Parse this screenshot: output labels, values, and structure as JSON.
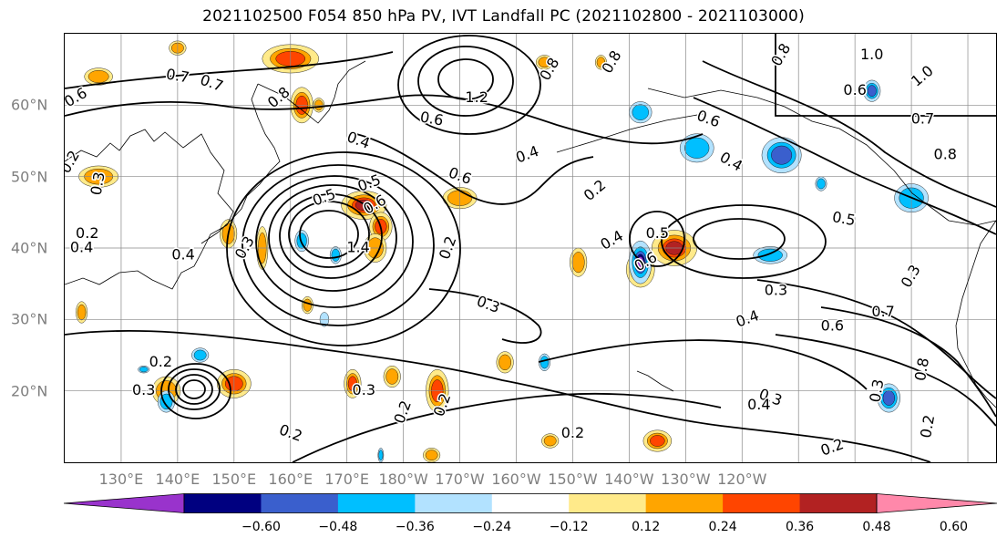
{
  "title": "2021102500 F054 850 hPa PV, IVT Landfall PC (2021102800 - 2021103000)",
  "lat_labels": [
    "60°N",
    "50°N",
    "40°N",
    "30°N",
    "20°N"
  ],
  "lon_labels": [
    "130°E",
    "140°E",
    "150°E",
    "160°E",
    "170°E",
    "180°W",
    "170°W",
    "160°W",
    "150°W",
    "140°W",
    "130°W",
    "120°W"
  ],
  "colorbar": {
    "colors": [
      "#9933cc",
      "#000080",
      "#3a5fcd",
      "#00bfff",
      "#b2e2ff",
      "#ffffff",
      "#ffea8a",
      "#ffa500",
      "#ff4500",
      "#b22222",
      "#ff88aa"
    ],
    "ticks": [
      "−0.60",
      "−0.48",
      "−0.36",
      "−0.24",
      "−0.12",
      "0.12",
      "0.24",
      "0.36",
      "0.48",
      "0.60"
    ]
  },
  "contour_labels": [
    {
      "text": "0.6",
      "lon": 122,
      "lat": 61,
      "rot": -30
    },
    {
      "text": "0.7",
      "lon": 140,
      "lat": 64,
      "rot": 10
    },
    {
      "text": "0.7",
      "lon": 146,
      "lat": 63,
      "rot": 20
    },
    {
      "text": "0.8",
      "lon": 158,
      "lat": 61,
      "rot": -40
    },
    {
      "text": "1.2",
      "lon": 193,
      "lat": 61
    },
    {
      "text": "0.6",
      "lon": 185,
      "lat": 58,
      "rot": 10
    },
    {
      "text": "0.8",
      "lon": 206,
      "lat": 65,
      "rot": -60
    },
    {
      "text": "0.8",
      "lon": 217,
      "lat": 66,
      "rot": -60
    },
    {
      "text": "0.4",
      "lon": 172,
      "lat": 55,
      "rot": 20
    },
    {
      "text": "0.4",
      "lon": 202,
      "lat": 53,
      "rot": -20
    },
    {
      "text": "0.5",
      "lon": 174,
      "lat": 49,
      "rot": -20
    },
    {
      "text": "0.6",
      "lon": 190,
      "lat": 50,
      "rot": 20
    },
    {
      "text": "0.2",
      "lon": 121,
      "lat": 52,
      "rot": -60
    },
    {
      "text": "0.3",
      "lon": 126,
      "lat": 49,
      "rot": -80
    },
    {
      "text": "0.4",
      "lon": 141,
      "lat": 39
    },
    {
      "text": "0.4",
      "lon": 123,
      "lat": 40
    },
    {
      "text": "0.3",
      "lon": 152,
      "lat": 40,
      "rot": -60
    },
    {
      "text": "0.5",
      "lon": 166,
      "lat": 47,
      "rot": -20
    },
    {
      "text": "0.6",
      "lon": 175,
      "lat": 46,
      "rot": -30
    },
    {
      "text": "1.4",
      "lon": 172,
      "lat": 40
    },
    {
      "text": "0.2",
      "lon": 188,
      "lat": 40,
      "rot": -70
    },
    {
      "text": "0.3",
      "lon": 195,
      "lat": 32,
      "rot": 20
    },
    {
      "text": "0.2",
      "lon": 214,
      "lat": 48,
      "rot": -40
    },
    {
      "text": "0.4",
      "lon": 217,
      "lat": 41,
      "rot": -30
    },
    {
      "text": "0.5",
      "lon": 225,
      "lat": 42
    },
    {
      "text": "0.6",
      "lon": 223,
      "lat": 38,
      "rot": -30
    },
    {
      "text": "0.6",
      "lon": 234,
      "lat": 58,
      "rot": 20
    },
    {
      "text": "0.4",
      "lon": 238,
      "lat": 52,
      "rot": 30
    },
    {
      "text": "0.5",
      "lon": 258,
      "lat": 44,
      "rot": 10
    },
    {
      "text": "0.3",
      "lon": 246,
      "lat": 34
    },
    {
      "text": "0.4",
      "lon": 241,
      "lat": 30,
      "rot": -20
    },
    {
      "text": "0.6",
      "lon": 256,
      "lat": 29
    },
    {
      "text": "0.7",
      "lon": 265,
      "lat": 31
    },
    {
      "text": "0.2",
      "lon": 180,
      "lat": 17,
      "rot": -70
    },
    {
      "text": "0.3",
      "lon": 173,
      "lat": 20
    },
    {
      "text": "0.2",
      "lon": 160,
      "lat": 14,
      "rot": 20
    },
    {
      "text": "0.2",
      "lon": 210,
      "lat": 14
    },
    {
      "text": "0.3",
      "lon": 245,
      "lat": 19,
      "rot": 20
    },
    {
      "text": "0.2",
      "lon": 256,
      "lat": 12,
      "rot": -20
    },
    {
      "text": "0.3",
      "lon": 264,
      "lat": 20,
      "rot": -80
    },
    {
      "text": "0.8",
      "lon": 272,
      "lat": 23,
      "rot": -80
    },
    {
      "text": "0.2",
      "lon": 273,
      "lat": 15,
      "rot": -80
    },
    {
      "text": "0.3",
      "lon": 270,
      "lat": 36,
      "rot": -60
    },
    {
      "text": "0.7",
      "lon": 272,
      "lat": 58
    },
    {
      "text": "0.6",
      "lon": 260,
      "lat": 62
    },
    {
      "text": "1.0",
      "lon": 263,
      "lat": 67
    },
    {
      "text": "1.0",
      "lon": 272,
      "lat": 64,
      "rot": -40
    },
    {
      "text": "0.8",
      "lon": 247,
      "lat": 67,
      "rot": -60
    },
    {
      "text": "0.3",
      "lon": 134,
      "lat": 20
    },
    {
      "text": "0.2",
      "lon": 137,
      "lat": 24
    },
    {
      "text": "0.2",
      "lon": 124,
      "lat": 42
    },
    {
      "text": "0.2",
      "lon": 187,
      "lat": 18,
      "rot": -70
    },
    {
      "text": "0.4",
      "lon": 243,
      "lat": 18
    },
    {
      "text": "0.8",
      "lon": 276,
      "lat": 53
    }
  ],
  "pv_patches": [
    {
      "lon": 126,
      "lat": 50,
      "rx": 3.5,
      "ry": 1.5,
      "level": 0.3
    },
    {
      "lon": 126,
      "lat": 64,
      "rx": 2.5,
      "ry": 1.2,
      "level": 0.3
    },
    {
      "lon": 140,
      "lat": 68,
      "rx": 1.5,
      "ry": 1,
      "level": 0.3
    },
    {
      "lon": 160,
      "lat": 66.5,
      "rx": 5,
      "ry": 2,
      "level": 0.4
    },
    {
      "lon": 162,
      "lat": 60,
      "rx": 2,
      "ry": 2.5,
      "level": 0.4
    },
    {
      "lon": 165,
      "lat": 60,
      "rx": 1,
      "ry": 1,
      "level": 0.3
    },
    {
      "lon": 173,
      "lat": 46,
      "rx": 4,
      "ry": 2,
      "level": 0.5
    },
    {
      "lon": 176,
      "lat": 43,
      "rx": 2,
      "ry": 2,
      "level": 0.4
    },
    {
      "lon": 149,
      "lat": 42,
      "rx": 1.5,
      "ry": 2,
      "level": 0.3
    },
    {
      "lon": 155,
      "lat": 40,
      "rx": 1,
      "ry": 3,
      "level": 0.3
    },
    {
      "lon": 190,
      "lat": 47,
      "rx": 3,
      "ry": 1.5,
      "level": 0.3
    },
    {
      "lon": 175,
      "lat": 40,
      "rx": 2,
      "ry": 2,
      "level": 0.3
    },
    {
      "lon": 211,
      "lat": 38,
      "rx": 1.5,
      "ry": 2,
      "level": 0.3
    },
    {
      "lon": 228,
      "lat": 40,
      "rx": 4,
      "ry": 2.5,
      "level": 0.55
    },
    {
      "lon": 222,
      "lat": 37,
      "rx": 2.5,
      "ry": 2.5,
      "level": 0.4
    },
    {
      "lon": 150,
      "lat": 21,
      "rx": 3,
      "ry": 2,
      "level": 0.45
    },
    {
      "lon": 138,
      "lat": 20,
      "rx": 2.5,
      "ry": 2,
      "level": 0.35
    },
    {
      "lon": 171,
      "lat": 21,
      "rx": 1.5,
      "ry": 2,
      "level": 0.4
    },
    {
      "lon": 178,
      "lat": 22,
      "rx": 1.5,
      "ry": 1.5,
      "level": 0.35
    },
    {
      "lon": 186,
      "lat": 20,
      "rx": 2,
      "ry": 3,
      "level": 0.4
    },
    {
      "lon": 198,
      "lat": 24,
      "rx": 1.5,
      "ry": 1.5,
      "level": 0.3
    },
    {
      "lon": 206,
      "lat": 13,
      "rx": 1.5,
      "ry": 1,
      "level": 0.3
    },
    {
      "lon": 225,
      "lat": 13,
      "rx": 2.5,
      "ry": 1.5,
      "level": 0.4
    },
    {
      "lon": 205,
      "lat": 66,
      "rx": 1.5,
      "ry": 1,
      "level": 0.3
    },
    {
      "lon": 215,
      "lat": 66,
      "rx": 1,
      "ry": 1,
      "level": 0.3
    },
    {
      "lon": 163,
      "lat": 32,
      "rx": 1,
      "ry": 1.2,
      "level": 0.3
    },
    {
      "lon": 185,
      "lat": 11,
      "rx": 1.5,
      "ry": 1,
      "level": 0.3
    },
    {
      "lon": 123,
      "lat": 31,
      "rx": 1,
      "ry": 1.5,
      "level": 0.3
    },
    {
      "lon": 222,
      "lat": 59,
      "rx": 2,
      "ry": 1.5,
      "level": -0.3
    },
    {
      "lon": 232,
      "lat": 54,
      "rx": 3,
      "ry": 2,
      "level": -0.35
    },
    {
      "lon": 247,
      "lat": 53,
      "rx": 3.5,
      "ry": 2.5,
      "level": -0.45
    },
    {
      "lon": 263,
      "lat": 62,
      "rx": 1.5,
      "ry": 1.5,
      "level": -0.45
    },
    {
      "lon": 270,
      "lat": 47,
      "rx": 3,
      "ry": 2,
      "level": -0.35
    },
    {
      "lon": 254,
      "lat": 49,
      "rx": 1,
      "ry": 1,
      "level": -0.3
    },
    {
      "lon": 222,
      "lat": 38,
      "rx": 2,
      "ry": 3,
      "level": -0.6
    },
    {
      "lon": 245,
      "lat": 39,
      "rx": 3,
      "ry": 1.2,
      "level": -0.3
    },
    {
      "lon": 162,
      "lat": 41,
      "rx": 1.2,
      "ry": 1.5,
      "level": -0.3
    },
    {
      "lon": 168,
      "lat": 39,
      "rx": 1,
      "ry": 1.2,
      "level": -0.25
    },
    {
      "lon": 138,
      "lat": 18.5,
      "rx": 1.5,
      "ry": 1.5,
      "level": -0.35
    },
    {
      "lon": 144,
      "lat": 25,
      "rx": 1.5,
      "ry": 1,
      "level": -0.25
    },
    {
      "lon": 205,
      "lat": 24,
      "rx": 1,
      "ry": 1.2,
      "level": -0.25
    },
    {
      "lon": 266,
      "lat": 19,
      "rx": 2,
      "ry": 2,
      "level": -0.4
    },
    {
      "lon": 176,
      "lat": 11,
      "rx": 0.5,
      "ry": 1,
      "level": -0.3
    },
    {
      "lon": 166,
      "lat": 30,
      "rx": 0.8,
      "ry": 1,
      "level": -0.2
    },
    {
      "lon": 134,
      "lat": 23,
      "rx": 1,
      "ry": 0.5,
      "level": -0.3
    }
  ]
}
